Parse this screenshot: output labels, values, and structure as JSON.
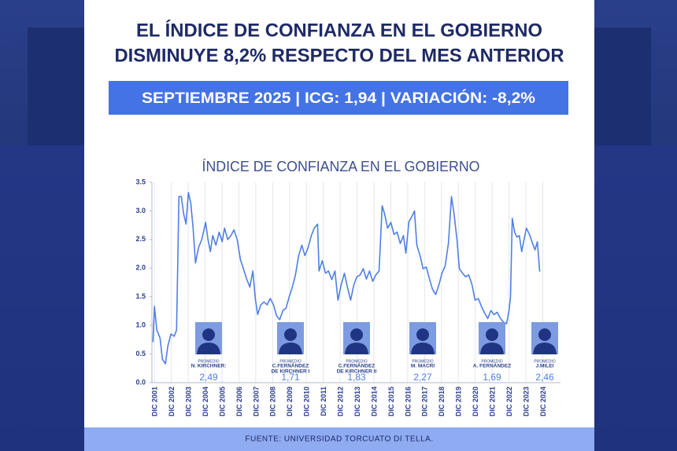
{
  "header": {
    "title": [
      "EL ÍNDICE DE CONFIANZA EN EL GOBIERNO",
      "DISMINUYE 8,2% RESPECTO DEL MES ANTERIOR"
    ],
    "banner": "SEPTIEMBRE 2025 | ICG: 1,94 | VARIACIÓN: -8,2%"
  },
  "chart_data": {
    "type": "line",
    "title": "ÍNDICE DE CONFIANZA EN EL GOBIERNO",
    "grid": "x",
    "xlim": [
      2000.85,
      2025.05
    ],
    "xticks": [
      {
        "value": 2001,
        "label": "DIC 2001"
      },
      {
        "value": 2002,
        "label": "DIC 2002"
      },
      {
        "value": 2003,
        "label": "DIC 2003"
      },
      {
        "value": 2004,
        "label": "DIC 2004"
      },
      {
        "value": 2005,
        "label": "DIC 2005"
      },
      {
        "value": 2006,
        "label": "DIC 2006"
      },
      {
        "value": 2007,
        "label": "DIC 2007"
      },
      {
        "value": 2008,
        "label": "DIC 2008"
      },
      {
        "value": 2009,
        "label": "DIC 2009"
      },
      {
        "value": 2010,
        "label": "DIC 2010"
      },
      {
        "value": 2011,
        "label": "DIC 2011"
      },
      {
        "value": 2012,
        "label": "DIC 2012"
      },
      {
        "value": 2013,
        "label": "DIC 2013"
      },
      {
        "value": 2014,
        "label": "DIC 2014"
      },
      {
        "value": 2015,
        "label": "DIC 2015"
      },
      {
        "value": 2016,
        "label": "DIC 2016"
      },
      {
        "value": 2017,
        "label": "DIC 2017"
      },
      {
        "value": 2018,
        "label": "DIC 2018"
      },
      {
        "value": 2019,
        "label": "DIC 2019"
      },
      {
        "value": 2020,
        "label": "DIC 2020"
      },
      {
        "value": 2021,
        "label": "DIC 2021"
      },
      {
        "value": 2022,
        "label": "DIC 2022"
      },
      {
        "value": 2023,
        "label": "DIC 2023"
      },
      {
        "value": 2024,
        "label": "DIC 2024"
      }
    ],
    "ylim": [
      0,
      3.5
    ],
    "yticks": [
      {
        "value": 0,
        "label": "0.0"
      },
      0.5,
      {
        "value": 1,
        "label": "1.0"
      },
      1.5,
      {
        "value": 2,
        "label": "2.0"
      },
      2.5,
      {
        "value": 3,
        "label": "3.0"
      },
      3.5
    ],
    "x": [
      2000.91,
      2001.0,
      2001.14,
      2001.33,
      2001.47,
      2001.65,
      2001.79,
      2001.98,
      2002.17,
      2002.31,
      2002.45,
      2002.59,
      2002.73,
      2002.87,
      2003.01,
      2003.15,
      2003.29,
      2003.43,
      2003.61,
      2003.8,
      2004.03,
      2004.17,
      2004.31,
      2004.45,
      2004.64,
      2004.83,
      2005.01,
      2005.15,
      2005.34,
      2005.53,
      2005.71,
      2005.9,
      2006.09,
      2006.27,
      2006.46,
      2006.65,
      2006.83,
      2006.97,
      2007.11,
      2007.3,
      2007.49,
      2007.67,
      2007.86,
      2008.05,
      2008.23,
      2008.42,
      2008.61,
      2008.79,
      2008.98,
      2009.17,
      2009.35,
      2009.54,
      2009.73,
      2009.91,
      2010.1,
      2010.29,
      2010.47,
      2010.66,
      2010.75,
      2010.94,
      2011.13,
      2011.31,
      2011.5,
      2011.69,
      2011.87,
      2012.06,
      2012.25,
      2012.43,
      2012.62,
      2012.81,
      2012.99,
      2013.18,
      2013.37,
      2013.55,
      2013.74,
      2013.93,
      2014.11,
      2014.3,
      2014.49,
      2014.63,
      2014.81,
      2015.0,
      2015.19,
      2015.37,
      2015.56,
      2015.75,
      2015.89,
      2016.07,
      2016.26,
      2016.4,
      2016.54,
      2016.73,
      2016.91,
      2017.1,
      2017.29,
      2017.47,
      2017.66,
      2017.85,
      2018.03,
      2018.22,
      2018.41,
      2018.59,
      2018.73,
      2018.92,
      2019.06,
      2019.25,
      2019.43,
      2019.62,
      2019.81,
      2019.99,
      2020.18,
      2020.37,
      2020.55,
      2020.74,
      2020.93,
      2021.11,
      2021.3,
      2021.49,
      2021.67,
      2021.86,
      2022.0,
      2022.09,
      2022.19,
      2022.33,
      2022.47,
      2022.61,
      2022.75,
      2022.89,
      2023.03,
      2023.21,
      2023.4,
      2023.54,
      2023.68,
      2023.82
    ],
    "series": [
      {
        "color": "#4f7fe6",
        "values": [
          0.71,
          1.33,
          0.92,
          0.78,
          0.41,
          0.33,
          0.64,
          0.85,
          0.81,
          0.92,
          3.25,
          3.25,
          2.95,
          2.77,
          3.32,
          3.14,
          2.7,
          2.09,
          2.36,
          2.5,
          2.8,
          2.5,
          2.29,
          2.57,
          2.4,
          2.63,
          2.46,
          2.7,
          2.5,
          2.57,
          2.67,
          2.5,
          2.15,
          1.99,
          1.81,
          1.67,
          1.95,
          1.47,
          1.19,
          1.36,
          1.41,
          1.36,
          1.47,
          1.36,
          1.17,
          1.1,
          1.26,
          1.3,
          1.5,
          1.67,
          1.88,
          2.22,
          2.4,
          2.22,
          2.36,
          2.57,
          2.7,
          2.77,
          1.95,
          2.13,
          1.91,
          1.95,
          1.8,
          1.95,
          1.44,
          1.71,
          1.91,
          1.67,
          1.44,
          1.71,
          1.85,
          1.88,
          1.99,
          1.81,
          1.95,
          1.77,
          1.88,
          1.95,
          3.09,
          2.95,
          2.7,
          2.8,
          2.59,
          2.63,
          2.43,
          2.57,
          2.26,
          2.81,
          2.91,
          3.0,
          2.4,
          2.22,
          1.99,
          2.02,
          1.81,
          1.63,
          1.54,
          1.71,
          1.91,
          2.04,
          2.43,
          3.25,
          2.98,
          2.5,
          1.99,
          1.91,
          1.85,
          1.88,
          1.71,
          1.44,
          1.47,
          1.33,
          1.22,
          1.12,
          1.26,
          1.19,
          1.23,
          1.12,
          1.06,
          1.03,
          1.26,
          1.5,
          2.87,
          2.63,
          2.54,
          2.57,
          2.29,
          2.5,
          2.7,
          2.59,
          2.43,
          2.32,
          2.46,
          1.94
        ]
      }
    ],
    "annotations": [
      {
        "label": "PROMEDIO",
        "name": [
          "N. KIRCHNER:"
        ],
        "average": "2,49"
      },
      {
        "label": "PROMEDIO",
        "name": [
          "C.FERNÁNDEZ",
          "DE KIRCHNER I"
        ],
        "average": "1,71"
      },
      {
        "label": "PROMEDIO",
        "name": [
          "C.FERNÁNDEZ",
          "DE KIRCHNER II"
        ],
        "average": "1,83"
      },
      {
        "label": "PROMEDIO",
        "name": [
          "M. MACRI"
        ],
        "average": "2,27"
      },
      {
        "label": "PROMEDIO",
        "name": [
          "A. FERNÁNDEZ"
        ],
        "average": "1,69"
      },
      {
        "label": "PROMEDIO",
        "name": [
          "J.MILEI"
        ],
        "average": "2,46"
      }
    ]
  },
  "footer": {
    "source": "FUENTE: UNIVERSIDAD TORCUATO DI TELLA."
  }
}
